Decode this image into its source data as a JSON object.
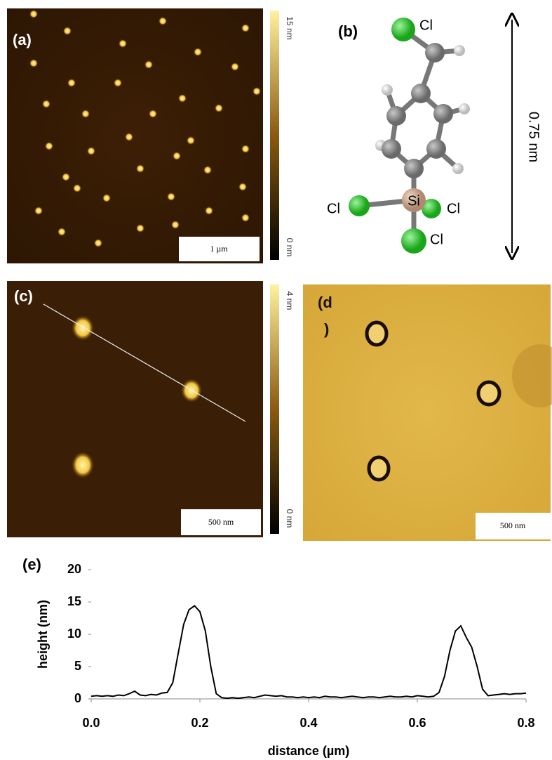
{
  "panel_a": {
    "label": "(a)",
    "colorbar_max": "15 nm",
    "colorbar_min": "0 nm",
    "scale_bar": "1 µm"
  },
  "panel_b": {
    "label": "(b)",
    "atoms": {
      "cl_top": "Cl",
      "cl_left": "Cl",
      "cl_right": "Cl",
      "cl_bottom": "Cl",
      "si": "Si"
    },
    "dimension": "0.75 nm"
  },
  "panel_c": {
    "label": "(c)",
    "colorbar_max": "4 nm",
    "colorbar_min": "0 nm",
    "scale_bar": "500 nm"
  },
  "panel_d": {
    "label_lines": [
      "(d",
      ")"
    ],
    "scale_bar": "500 nm"
  },
  "chart_data": {
    "type": "line",
    "panel_label": "(e)",
    "x_label": "distance (µm)",
    "y_label": "height (nm)",
    "color": "#000000",
    "xlim": [
      0,
      0.8
    ],
    "ylim": [
      0,
      20
    ],
    "xticks": [
      {
        "value": 0,
        "label": "0.0"
      },
      0.2,
      0.4,
      0.6,
      0.8
    ],
    "yticks": [
      0,
      5,
      10,
      15,
      20
    ],
    "x": [
      0,
      0.01,
      0.02,
      0.03,
      0.04,
      0.05,
      0.06,
      0.07,
      0.08,
      0.09,
      0.1,
      0.11,
      0.12,
      0.13,
      0.14,
      0.15,
      0.16,
      0.17,
      0.18,
      0.19,
      0.2,
      0.21,
      0.22,
      0.23,
      0.24,
      0.25,
      0.26,
      0.27,
      0.28,
      0.29,
      0.3,
      0.31,
      0.32,
      0.33,
      0.34,
      0.35,
      0.36,
      0.37,
      0.38,
      0.39,
      0.4,
      0.41,
      0.42,
      0.43,
      0.44,
      0.45,
      0.46,
      0.47,
      0.48,
      0.49,
      0.5,
      0.51,
      0.52,
      0.53,
      0.54,
      0.55,
      0.56,
      0.57,
      0.58,
      0.59,
      0.6,
      0.61,
      0.62,
      0.63,
      0.64,
      0.65,
      0.66,
      0.67,
      0.68,
      0.69,
      0.7,
      0.71,
      0.72,
      0.73,
      0.74,
      0.75,
      0.76,
      0.77,
      0.78,
      0.79,
      0.8
    ],
    "values": [
      0.4,
      0.5,
      0.4,
      0.5,
      0.4,
      0.6,
      0.5,
      0.8,
      1.2,
      0.6,
      0.5,
      0.7,
      0.6,
      0.9,
      1.0,
      2.5,
      7,
      11.5,
      13.8,
      14.4,
      13.5,
      10.5,
      5,
      0.8,
      0.2,
      0.1,
      0.2,
      0.1,
      0.2,
      0.3,
      0.2,
      0.4,
      0.6,
      0.5,
      0.4,
      0.5,
      0.3,
      0.3,
      0.2,
      0.3,
      0.2,
      0.3,
      0.2,
      0.4,
      0.3,
      0.3,
      0.2,
      0.3,
      0.4,
      0.3,
      0.2,
      0.3,
      0.3,
      0.2,
      0.3,
      0.4,
      0.3,
      0.3,
      0.4,
      0.3,
      0.5,
      0.4,
      0.3,
      0.4,
      1.0,
      3.5,
      7.5,
      10.5,
      11.3,
      9.5,
      8.0,
      5,
      1.5,
      0.5,
      0.6,
      0.7,
      0.8,
      0.7,
      0.8,
      0.8,
      0.9
    ]
  }
}
